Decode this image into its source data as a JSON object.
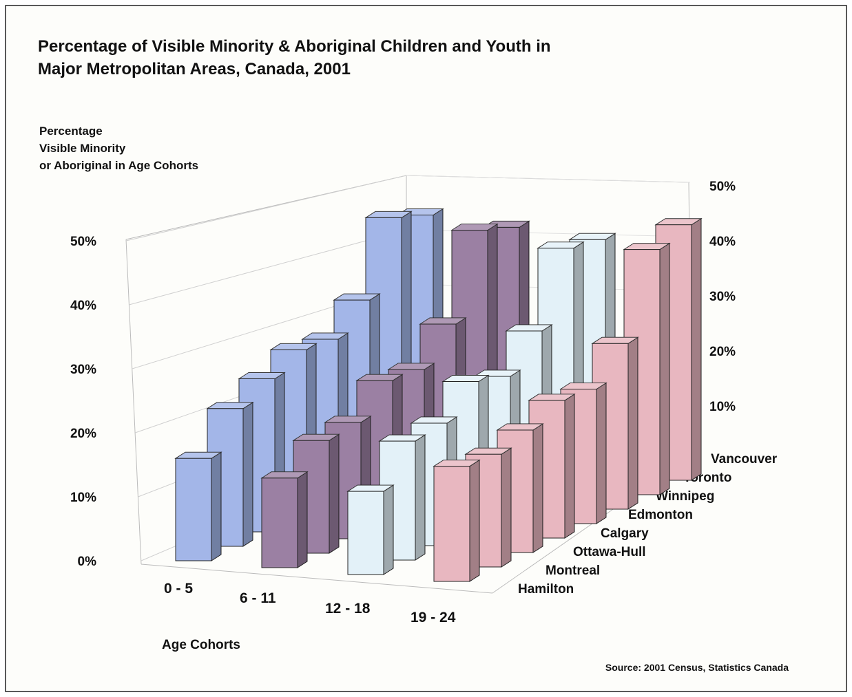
{
  "chart_data": {
    "type": "bar",
    "title": [
      "Percentage of Visible Minority & Aboriginal Children and Youth in",
      "Major Metropolitan Areas, Canada, 2001"
    ],
    "y_label": [
      "Percentage",
      "Visible Minority",
      "or Aboriginal in Age Cohorts"
    ],
    "x_label": "Age Cohorts",
    "source": "Source: 2001 Census, Statistics Canada",
    "categories": [
      "0 - 5",
      "6 - 11",
      "12 - 18",
      "19 - 24"
    ],
    "category_colors": [
      "#a3b6e8",
      "#9b80a3",
      "#e3f1f8",
      "#e8b7c0"
    ],
    "series": [
      {
        "name": "Hamilton",
        "values": [
          16,
          14,
          13,
          18
        ]
      },
      {
        "name": "Montreal",
        "values": [
          22,
          18,
          19,
          18
        ]
      },
      {
        "name": "Ottawa-Hull",
        "values": [
          25,
          19,
          20,
          20
        ]
      },
      {
        "name": "Calgary",
        "values": [
          28,
          24,
          25,
          23
        ]
      },
      {
        "name": "Edmonton",
        "values": [
          28,
          24,
          24,
          23
        ]
      },
      {
        "name": "Winnipeg",
        "values": [
          33,
          30,
          30,
          29
        ]
      },
      {
        "name": "Toronto",
        "values": [
          46,
          45,
          43,
          44
        ]
      },
      {
        "name": "Vancouver",
        "values": [
          45,
          44,
          43,
          47
        ]
      }
    ],
    "ylim": [
      0,
      50
    ],
    "yticks": [
      {
        "value": 0,
        "label": "0%"
      },
      {
        "value": 10,
        "label": "10%"
      },
      {
        "value": 20,
        "label": "20%"
      },
      {
        "value": 30,
        "label": "30%"
      },
      {
        "value": 40,
        "label": "40%"
      },
      {
        "value": 50,
        "label": "50%"
      }
    ],
    "grid": true
  }
}
